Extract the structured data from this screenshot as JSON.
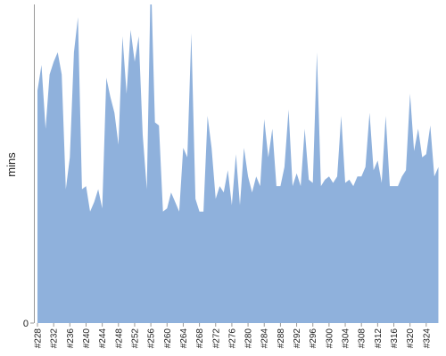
{
  "chart_data": {
    "type": "area",
    "y_label": "mins",
    "color": "#8fb1dc",
    "categories": [
      "#228",
      null,
      null,
      null,
      "#232",
      null,
      null,
      null,
      "#236",
      null,
      null,
      null,
      "#240",
      null,
      null,
      null,
      "#244",
      null,
      null,
      null,
      "#248",
      null,
      null,
      null,
      "#252",
      null,
      null,
      null,
      "#256",
      null,
      null,
      null,
      "#260",
      null,
      null,
      null,
      "#264",
      null,
      null,
      null,
      "#268",
      null,
      null,
      null,
      "#272",
      null,
      null,
      null,
      "#276",
      null,
      null,
      null,
      "#280",
      null,
      null,
      null,
      "#284",
      null,
      null,
      null,
      "#288",
      null,
      null,
      null,
      "#292",
      null,
      null,
      null,
      "#296",
      null,
      null,
      null,
      "#300",
      null,
      null,
      null,
      "#304",
      null,
      null,
      null,
      "#308",
      null,
      null,
      null,
      "#312",
      null,
      null,
      null,
      "#316",
      null,
      null,
      null,
      "#320",
      null,
      null,
      null,
      "#324",
      null,
      null,
      null
    ],
    "values": [
      73,
      81,
      61,
      78,
      82,
      85,
      78,
      42,
      52,
      85,
      96,
      42,
      43,
      35,
      38,
      42,
      36,
      77,
      71,
      66,
      56,
      90,
      72,
      92,
      82,
      90,
      59,
      42,
      110,
      63,
      62,
      35,
      36,
      41,
      38,
      35,
      55,
      52,
      91,
      39,
      35,
      35,
      65,
      55,
      39,
      43,
      41,
      48,
      37,
      53,
      37,
      55,
      46,
      41,
      46,
      43,
      64,
      52,
      61,
      43,
      43,
      49,
      67,
      43,
      47,
      43,
      61,
      45,
      44,
      85,
      43,
      45,
      46,
      44,
      46,
      65,
      44,
      45,
      43,
      46,
      46,
      49,
      66,
      48,
      51,
      44,
      65,
      43,
      43,
      43,
      46,
      48,
      72,
      54,
      61,
      52,
      53,
      62,
      46,
      49
    ],
    "ylim": [
      0,
      100
    ],
    "yticks": [
      0
    ]
  }
}
